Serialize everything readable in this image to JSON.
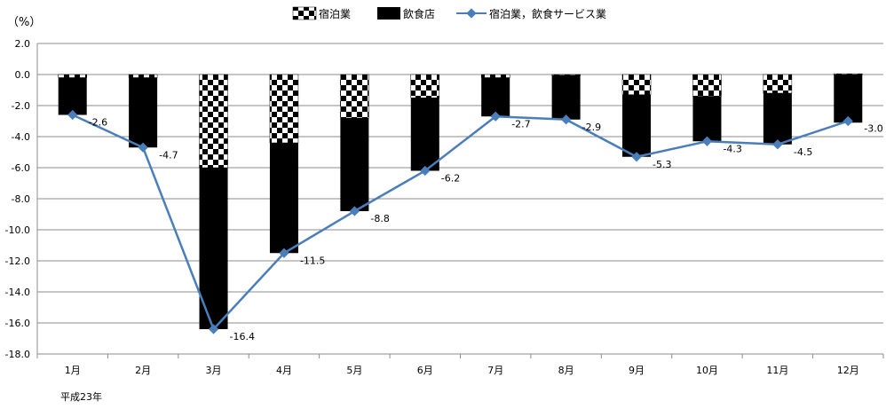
{
  "chart_data": {
    "type": "bar",
    "unit_label": "（%）",
    "footnote": "平成23年",
    "categories": [
      "1月",
      "2月",
      "3月",
      "4月",
      "5月",
      "6月",
      "7月",
      "8月",
      "9月",
      "10月",
      "11月",
      "12月"
    ],
    "series": [
      {
        "name": "宿泊業",
        "type": "stacked-bar",
        "pattern": "checker",
        "values": [
          -0.2,
          -0.2,
          -6.0,
          -4.4,
          -2.8,
          -1.5,
          -0.2,
          -0.05,
          -1.3,
          -1.4,
          -1.2,
          0.05
        ]
      },
      {
        "name": "飲食店",
        "type": "stacked-bar",
        "color": "#000000",
        "values": [
          -2.4,
          -4.5,
          -10.4,
          -7.1,
          -6.0,
          -4.7,
          -2.5,
          -2.85,
          -4.0,
          -2.9,
          -3.3,
          -3.1
        ]
      },
      {
        "name": "宿泊業，飲食サービス業",
        "type": "line",
        "color": "#4A7EBB",
        "marker": "diamond",
        "values": [
          -2.6,
          -4.7,
          -16.4,
          -11.5,
          -8.8,
          -6.2,
          -2.7,
          -2.9,
          -5.3,
          -4.3,
          -4.5,
          -3.0
        ]
      }
    ],
    "data_labels": [
      "-2.6",
      "-4.7",
      "-16.4",
      "-11.5",
      "-8.8",
      "-6.2",
      "-2.7",
      "-2.9",
      "-5.3",
      "-4.3",
      "-4.5",
      "-3.0"
    ],
    "yticks": [
      "2.0",
      "0.0",
      "-2.0",
      "-4.0",
      "-6.0",
      "-8.0",
      "-10.0",
      "-12.0",
      "-14.0",
      "-16.0",
      "-18.0"
    ],
    "ylim": [
      -18,
      2
    ],
    "grid": true,
    "legend_position": "top"
  }
}
